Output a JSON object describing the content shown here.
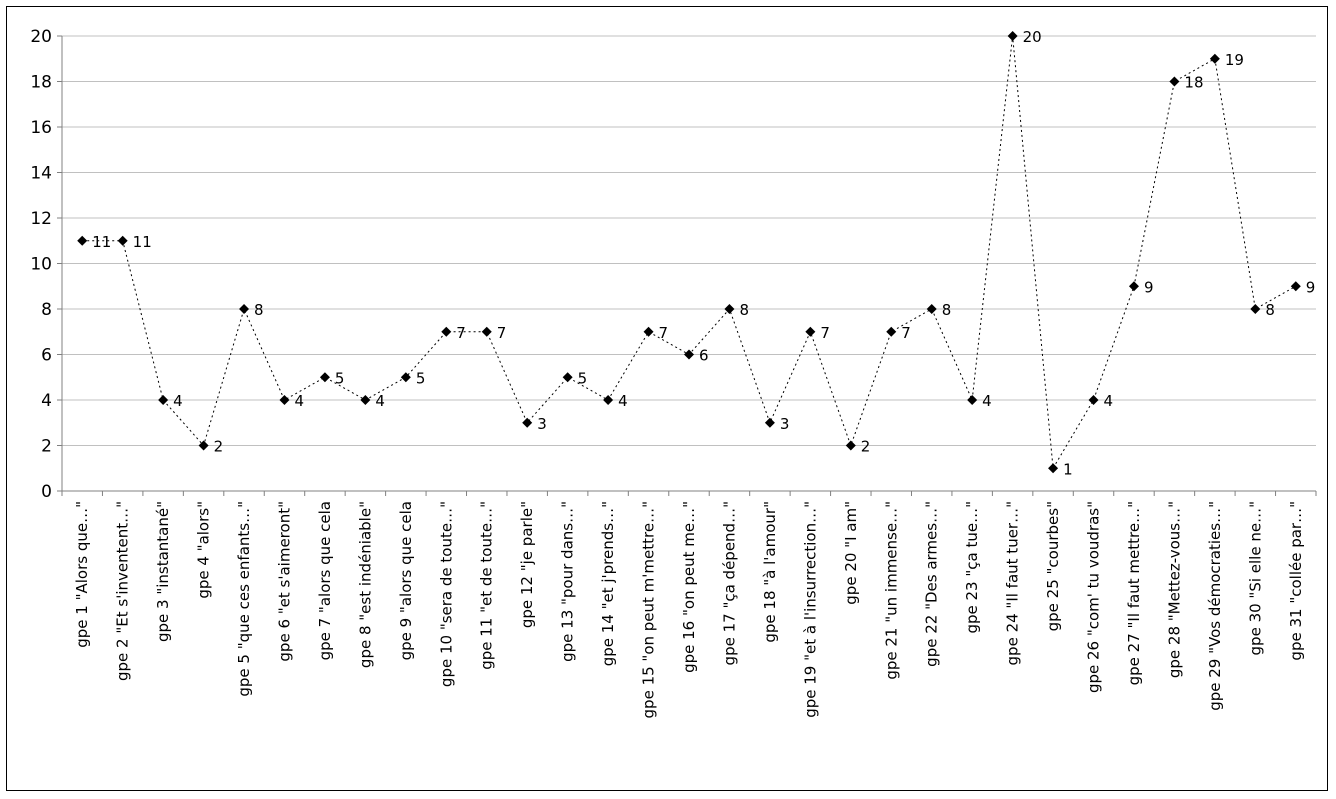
{
  "chart_data": {
    "type": "line",
    "title": "",
    "xlabel": "",
    "ylabel": "",
    "ylim": [
      0,
      20
    ],
    "ytick_step": 2,
    "grid": true,
    "legend": "none",
    "line_style": "dotted",
    "marker": "diamond",
    "colors": {
      "line": "#000000",
      "grid": "#c0c0c0",
      "axis": "#808080"
    },
    "categories": [
      "gpe 1 \"Alors que…\"",
      "gpe 2 \"Et s'inventent…\"",
      "gpe 3 \"instantané\"",
      "gpe 4 \"alors\"",
      "gpe 5 \"que ces enfants…\"",
      "gpe 6 \"et s'aimeront\"",
      "gpe 7 \"alors que cela",
      "gpe 8 \"est indéniable\"",
      "gpe 9 \"alors que cela",
      "gpe 10 \"sera de toute…\"",
      "gpe 11 \"et de toute…\"",
      "gpe 12 \"je parle\"",
      "gpe 13 \"pour dans…\"",
      "gpe 14 \"et j'prends…\"",
      "gpe 15 \"on peut m'mettre…\"",
      "gpe 16 \"on peut me…\"",
      "gpe 17 \"ça dépend…\"",
      "gpe 18 \"à l'amour\"",
      "gpe 19 \"et à l'insurrection…\"",
      "gpe 20 \"I am\"",
      "gpe 21 \"un immense…\"",
      "gpe 22 \"Des armes…\"",
      "gpe 23 \"ça tue…\"",
      "gpe 24 \"Il faut tuer…\"",
      "gpe 25 \"courbes\"",
      "gpe 26 \"com' tu voudras\"",
      "gpe 27 \"Il faut mettre…\"",
      "gpe 28 \"Mettez-vous…\"",
      "gpe 29 \"Vos démocraties…\"",
      "gpe 30 \"Si elle ne…\"",
      "gpe 31 \"collée par…\""
    ],
    "series": [
      {
        "values": [
          11,
          11,
          4,
          2,
          8,
          4,
          5,
          4,
          5,
          7,
          7,
          3,
          5,
          4,
          7,
          6,
          8,
          3,
          7,
          2,
          7,
          8,
          4,
          20,
          1,
          4,
          9,
          18,
          19,
          8,
          9
        ]
      }
    ]
  }
}
